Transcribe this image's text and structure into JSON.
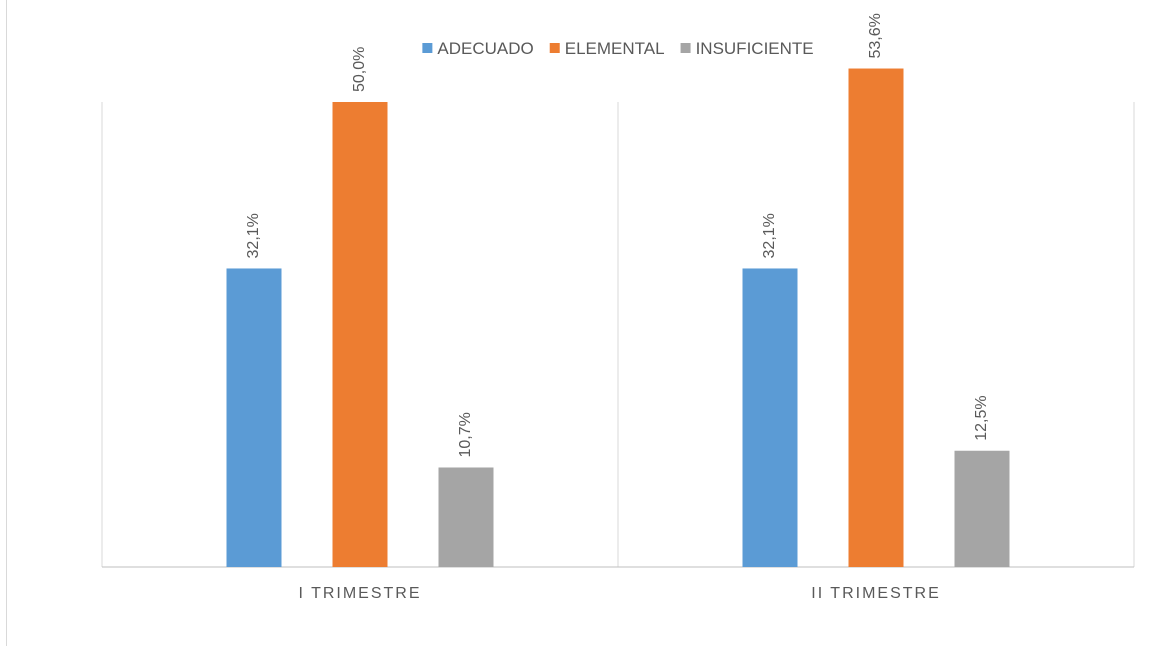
{
  "chart_data": {
    "type": "bar",
    "categories": [
      "I TRIMESTRE",
      "II TRIMESTRE"
    ],
    "series": [
      {
        "name": "ADECUADO",
        "color": "#5b9bd5",
        "values": [
          32.1,
          32.1
        ],
        "labels": [
          "32,1%",
          "32,1%"
        ]
      },
      {
        "name": "ELEMENTAL",
        "color": "#ed7d31",
        "values": [
          50.0,
          53.6
        ],
        "labels": [
          "50,0%",
          "53,6%"
        ]
      },
      {
        "name": "INSUFICIENTE",
        "color": "#a5a5a5",
        "values": [
          10.7,
          12.5
        ],
        "labels": [
          "10,7%",
          "12,5%"
        ]
      }
    ],
    "ylim": [
      0,
      60
    ],
    "grid": false,
    "legend_position": "top-center",
    "xlabel": "",
    "ylabel": ""
  }
}
